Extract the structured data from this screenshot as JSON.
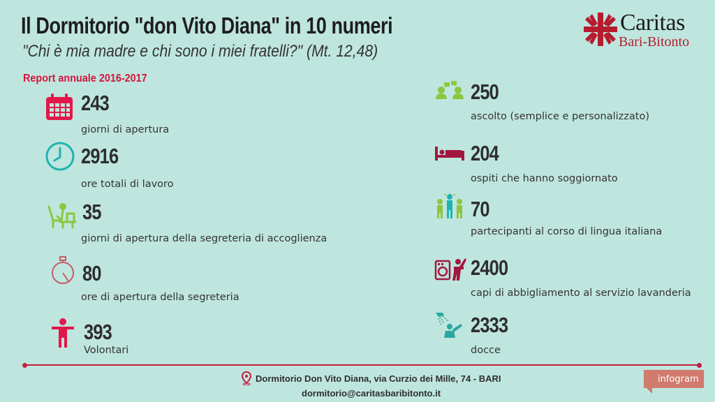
{
  "header": {
    "title": "Il Dormitorio \"don Vito Diana\" in 10 numeri",
    "subtitle": "\"Chi è mia madre e chi sono i miei fratelli?\" (Mt. 12,48)",
    "report": "Report annuale 2016-2017"
  },
  "logo": {
    "name": "Caritas",
    "sub": "Bari-Bitonto"
  },
  "stats_left": [
    {
      "icon": "calendar-icon",
      "value": "243",
      "label": "giorni di apertura"
    },
    {
      "icon": "clock-icon",
      "value": "2916",
      "label": "ore totali di lavoro"
    },
    {
      "icon": "desk-worker-icon",
      "value": "35",
      "label": "giorni di apertura della segreteria di accoglienza"
    },
    {
      "icon": "stopwatch-icon",
      "value": "80",
      "label": "ore di apertura della segreteria"
    },
    {
      "icon": "person-icon",
      "value": "393",
      "label": "Volontari"
    }
  ],
  "stats_right": [
    {
      "icon": "conversation-icon",
      "value": "250",
      "label": "ascolto (semplice e personalizzato)"
    },
    {
      "icon": "bed-icon",
      "value": "204",
      "label": "ospiti che hanno soggiornato"
    },
    {
      "icon": "class-icon",
      "value": "70",
      "label": "partecipanti al corso di lingua italiana"
    },
    {
      "icon": "laundry-icon",
      "value": "2400",
      "label": "capi di abbigliamento al servizio lavanderia"
    },
    {
      "icon": "shower-icon",
      "value": "2333",
      "label": "docce"
    }
  ],
  "footer": {
    "address": "Dormitorio Don Vito Diana, via Curzio dei Mille, 74 - BARI",
    "email": "dormitorio@caritasbaribitonto.it",
    "badge": "infogram"
  },
  "colors": {
    "background": "#bfe6de",
    "accent_red": "#d5143f",
    "teal": "#1fb3b0",
    "green": "#8dc63f",
    "maroon": "#a3173f"
  }
}
